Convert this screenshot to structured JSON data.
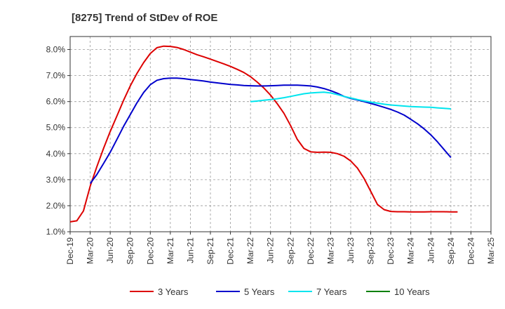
{
  "chart_data": {
    "type": "line",
    "title": "[8275]  Trend of StDev of ROE",
    "xlabel": "",
    "ylabel": "",
    "x_ticks": [
      "Dec-19",
      "Mar-20",
      "Jun-20",
      "Sep-20",
      "Dec-20",
      "Mar-21",
      "Jun-21",
      "Sep-21",
      "Dec-21",
      "Mar-22",
      "Jun-22",
      "Sep-22",
      "Dec-22",
      "Mar-23",
      "Jun-23",
      "Sep-23",
      "Dec-23",
      "Mar-24",
      "Jun-24",
      "Sep-24",
      "Dec-24",
      "Mar-25"
    ],
    "y_ticks": [
      "1.0%",
      "2.0%",
      "3.0%",
      "4.0%",
      "5.0%",
      "6.0%",
      "7.0%",
      "8.0%"
    ],
    "ylim": [
      1.0,
      8.5
    ],
    "grid": true,
    "legend_position": "bottom",
    "series": [
      {
        "name": "3 Years",
        "color": "#dd0000",
        "points": [
          [
            "Dec-19",
            1.38
          ],
          [
            "Jan-20",
            1.42
          ],
          [
            "Feb-20",
            1.8
          ],
          [
            "Mar-20",
            2.75
          ],
          [
            "Apr-20",
            3.5
          ],
          [
            "May-20",
            4.2
          ],
          [
            "Jun-20",
            4.85
          ],
          [
            "Jul-20",
            5.45
          ],
          [
            "Aug-20",
            6.05
          ],
          [
            "Sep-20",
            6.6
          ],
          [
            "Oct-20",
            7.08
          ],
          [
            "Nov-20",
            7.5
          ],
          [
            "Dec-20",
            7.85
          ],
          [
            "Jan-21",
            8.07
          ],
          [
            "Feb-21",
            8.13
          ],
          [
            "Mar-21",
            8.12
          ],
          [
            "Apr-21",
            8.08
          ],
          [
            "May-21",
            8.0
          ],
          [
            "Jun-21",
            7.9
          ],
          [
            "Jul-21",
            7.8
          ],
          [
            "Aug-21",
            7.72
          ],
          [
            "Sep-21",
            7.63
          ],
          [
            "Oct-21",
            7.54
          ],
          [
            "Nov-21",
            7.45
          ],
          [
            "Dec-21",
            7.35
          ],
          [
            "Jan-22",
            7.24
          ],
          [
            "Feb-22",
            7.12
          ],
          [
            "Mar-22",
            6.96
          ],
          [
            "Apr-22",
            6.75
          ],
          [
            "May-22",
            6.52
          ],
          [
            "Jun-22",
            6.25
          ],
          [
            "Jul-22",
            5.92
          ],
          [
            "Aug-22",
            5.55
          ],
          [
            "Sep-22",
            5.08
          ],
          [
            "Oct-22",
            4.55
          ],
          [
            "Nov-22",
            4.2
          ],
          [
            "Dec-22",
            4.07
          ],
          [
            "Jan-23",
            4.05
          ],
          [
            "Feb-23",
            4.06
          ],
          [
            "Mar-23",
            4.05
          ],
          [
            "Apr-23",
            4.0
          ],
          [
            "May-23",
            3.9
          ],
          [
            "Jun-23",
            3.72
          ],
          [
            "Jul-23",
            3.45
          ],
          [
            "Aug-23",
            3.05
          ],
          [
            "Sep-23",
            2.55
          ],
          [
            "Oct-23",
            2.05
          ],
          [
            "Nov-23",
            1.85
          ],
          [
            "Dec-23",
            1.78
          ],
          [
            "Jan-24",
            1.77
          ],
          [
            "Feb-24",
            1.77
          ],
          [
            "Mar-24",
            1.76
          ],
          [
            "Apr-24",
            1.76
          ],
          [
            "May-24",
            1.76
          ],
          [
            "Jun-24",
            1.77
          ],
          [
            "Jul-24",
            1.77
          ],
          [
            "Aug-24",
            1.77
          ],
          [
            "Sep-24",
            1.76
          ],
          [
            "Oct-24",
            1.76
          ]
        ]
      },
      {
        "name": "5 Years",
        "color": "#0000cc",
        "points": [
          [
            "Mar-20",
            2.85
          ],
          [
            "Apr-20",
            3.2
          ],
          [
            "May-20",
            3.62
          ],
          [
            "Jun-20",
            4.05
          ],
          [
            "Jul-20",
            4.55
          ],
          [
            "Aug-20",
            5.05
          ],
          [
            "Sep-20",
            5.5
          ],
          [
            "Oct-20",
            5.95
          ],
          [
            "Nov-20",
            6.35
          ],
          [
            "Dec-20",
            6.65
          ],
          [
            "Jan-21",
            6.82
          ],
          [
            "Feb-21",
            6.88
          ],
          [
            "Mar-21",
            6.9
          ],
          [
            "Apr-21",
            6.9
          ],
          [
            "May-21",
            6.88
          ],
          [
            "Jun-21",
            6.85
          ],
          [
            "Jul-21",
            6.82
          ],
          [
            "Aug-21",
            6.79
          ],
          [
            "Sep-21",
            6.75
          ],
          [
            "Oct-21",
            6.72
          ],
          [
            "Nov-21",
            6.69
          ],
          [
            "Dec-21",
            6.66
          ],
          [
            "Jan-22",
            6.64
          ],
          [
            "Feb-22",
            6.62
          ],
          [
            "Mar-22",
            6.61
          ],
          [
            "Apr-22",
            6.6
          ],
          [
            "May-22",
            6.6
          ],
          [
            "Jun-22",
            6.61
          ],
          [
            "Jul-22",
            6.62
          ],
          [
            "Aug-22",
            6.63
          ],
          [
            "Sep-22",
            6.63
          ],
          [
            "Oct-22",
            6.63
          ],
          [
            "Nov-22",
            6.62
          ],
          [
            "Dec-22",
            6.6
          ],
          [
            "Jan-23",
            6.56
          ],
          [
            "Feb-23",
            6.5
          ],
          [
            "Mar-23",
            6.42
          ],
          [
            "Apr-23",
            6.32
          ],
          [
            "May-23",
            6.2
          ],
          [
            "Jun-23",
            6.12
          ],
          [
            "Jul-23",
            6.06
          ],
          [
            "Aug-23",
            6.0
          ],
          [
            "Sep-23",
            5.93
          ],
          [
            "Oct-23",
            5.86
          ],
          [
            "Nov-23",
            5.78
          ],
          [
            "Dec-23",
            5.7
          ],
          [
            "Jan-24",
            5.6
          ],
          [
            "Feb-24",
            5.48
          ],
          [
            "Mar-24",
            5.32
          ],
          [
            "Apr-24",
            5.15
          ],
          [
            "May-24",
            4.95
          ],
          [
            "Jun-24",
            4.72
          ],
          [
            "Jul-24",
            4.45
          ],
          [
            "Aug-24",
            4.15
          ],
          [
            "Sep-24",
            3.85
          ]
        ]
      },
      {
        "name": "7 Years",
        "color": "#00e5ee",
        "points": [
          [
            "Mar-22",
            6.0
          ],
          [
            "Apr-22",
            6.02
          ],
          [
            "May-22",
            6.05
          ],
          [
            "Jun-22",
            6.08
          ],
          [
            "Jul-22",
            6.11
          ],
          [
            "Aug-22",
            6.15
          ],
          [
            "Sep-22",
            6.2
          ],
          [
            "Oct-22",
            6.25
          ],
          [
            "Nov-22",
            6.3
          ],
          [
            "Dec-22",
            6.33
          ],
          [
            "Jan-23",
            6.35
          ],
          [
            "Feb-23",
            6.36
          ],
          [
            "Mar-23",
            6.33
          ],
          [
            "Apr-23",
            6.27
          ],
          [
            "May-23",
            6.2
          ],
          [
            "Jun-23",
            6.14
          ],
          [
            "Jul-23",
            6.08
          ],
          [
            "Aug-23",
            6.03
          ],
          [
            "Sep-23",
            5.98
          ],
          [
            "Oct-23",
            5.94
          ],
          [
            "Nov-23",
            5.9
          ],
          [
            "Dec-23",
            5.87
          ],
          [
            "Jan-24",
            5.85
          ],
          [
            "Feb-24",
            5.83
          ],
          [
            "Mar-24",
            5.81
          ],
          [
            "Apr-24",
            5.8
          ],
          [
            "May-24",
            5.79
          ],
          [
            "Jun-24",
            5.78
          ],
          [
            "Jul-24",
            5.76
          ],
          [
            "Aug-24",
            5.74
          ],
          [
            "Sep-24",
            5.72
          ]
        ]
      },
      {
        "name": "10 Years",
        "color": "#008000",
        "points": []
      }
    ]
  }
}
